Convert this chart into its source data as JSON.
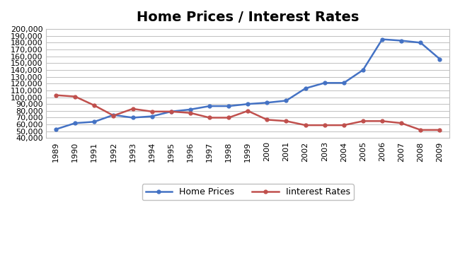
{
  "title": "Home Prices / Interest Rates",
  "years": [
    1989,
    1990,
    1991,
    1992,
    1993,
    1994,
    1995,
    1996,
    1997,
    1998,
    1999,
    2000,
    2001,
    2002,
    2003,
    2004,
    2005,
    2006,
    2007,
    2008,
    2009
  ],
  "home_prices": [
    53000,
    62000,
    64000,
    74000,
    70000,
    72000,
    79000,
    82000,
    87000,
    87000,
    90000,
    92000,
    95000,
    113000,
    121000,
    121000,
    140000,
    185000,
    183000,
    180000,
    156000
  ],
  "interest_rates": [
    103000,
    101000,
    88000,
    73000,
    83000,
    79000,
    79000,
    77000,
    70000,
    70000,
    80000,
    67000,
    65000,
    59000,
    59000,
    59000,
    65000,
    65000,
    62000,
    52000,
    52000
  ],
  "home_prices_color": "#4472C4",
  "interest_rates_color": "#C0504D",
  "home_prices_label": "Home Prices",
  "interest_rates_label": "Iinterest Rates",
  "ylim": [
    40000,
    200000
  ],
  "yticks": [
    40000,
    50000,
    60000,
    70000,
    80000,
    90000,
    100000,
    110000,
    120000,
    130000,
    140000,
    150000,
    160000,
    170000,
    180000,
    190000,
    200000
  ],
  "bg_color": "#FFFFFF",
  "plot_bg_color": "#FFFFFF",
  "grid_color": "#C0C0C0",
  "line_width": 1.8,
  "title_fontsize": 14,
  "tick_fontsize": 8,
  "legend_fontsize": 9,
  "outer_border_color": "#C0C0C0",
  "figsize": [
    6.5,
    3.82
  ],
  "dpi": 100
}
